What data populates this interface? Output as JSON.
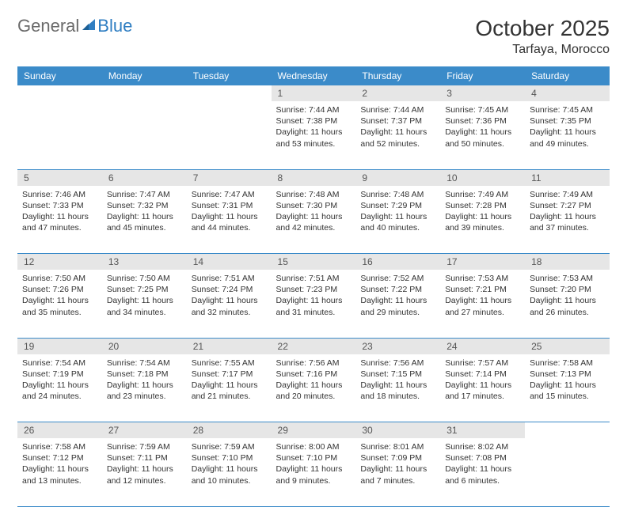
{
  "logo": {
    "part1": "General",
    "part2": "Blue"
  },
  "title": "October 2025",
  "location": "Tarfaya, Morocco",
  "colors": {
    "header_bg": "#3b8bc9",
    "header_text": "#ffffff",
    "daynum_bg": "#e6e6e6",
    "rule": "#3b8bc9",
    "text": "#333333",
    "logo_gray": "#6b6b6b",
    "logo_blue": "#2f7ec2"
  },
  "weekdays": [
    "Sunday",
    "Monday",
    "Tuesday",
    "Wednesday",
    "Thursday",
    "Friday",
    "Saturday"
  ],
  "weeks": [
    {
      "nums": [
        "",
        "",
        "",
        "1",
        "2",
        "3",
        "4"
      ],
      "cells": [
        null,
        null,
        null,
        {
          "sunrise": "Sunrise: 7:44 AM",
          "sunset": "Sunset: 7:38 PM",
          "day1": "Daylight: 11 hours",
          "day2": "and 53 minutes."
        },
        {
          "sunrise": "Sunrise: 7:44 AM",
          "sunset": "Sunset: 7:37 PM",
          "day1": "Daylight: 11 hours",
          "day2": "and 52 minutes."
        },
        {
          "sunrise": "Sunrise: 7:45 AM",
          "sunset": "Sunset: 7:36 PM",
          "day1": "Daylight: 11 hours",
          "day2": "and 50 minutes."
        },
        {
          "sunrise": "Sunrise: 7:45 AM",
          "sunset": "Sunset: 7:35 PM",
          "day1": "Daylight: 11 hours",
          "day2": "and 49 minutes."
        }
      ]
    },
    {
      "nums": [
        "5",
        "6",
        "7",
        "8",
        "9",
        "10",
        "11"
      ],
      "cells": [
        {
          "sunrise": "Sunrise: 7:46 AM",
          "sunset": "Sunset: 7:33 PM",
          "day1": "Daylight: 11 hours",
          "day2": "and 47 minutes."
        },
        {
          "sunrise": "Sunrise: 7:47 AM",
          "sunset": "Sunset: 7:32 PM",
          "day1": "Daylight: 11 hours",
          "day2": "and 45 minutes."
        },
        {
          "sunrise": "Sunrise: 7:47 AM",
          "sunset": "Sunset: 7:31 PM",
          "day1": "Daylight: 11 hours",
          "day2": "and 44 minutes."
        },
        {
          "sunrise": "Sunrise: 7:48 AM",
          "sunset": "Sunset: 7:30 PM",
          "day1": "Daylight: 11 hours",
          "day2": "and 42 minutes."
        },
        {
          "sunrise": "Sunrise: 7:48 AM",
          "sunset": "Sunset: 7:29 PM",
          "day1": "Daylight: 11 hours",
          "day2": "and 40 minutes."
        },
        {
          "sunrise": "Sunrise: 7:49 AM",
          "sunset": "Sunset: 7:28 PM",
          "day1": "Daylight: 11 hours",
          "day2": "and 39 minutes."
        },
        {
          "sunrise": "Sunrise: 7:49 AM",
          "sunset": "Sunset: 7:27 PM",
          "day1": "Daylight: 11 hours",
          "day2": "and 37 minutes."
        }
      ]
    },
    {
      "nums": [
        "12",
        "13",
        "14",
        "15",
        "16",
        "17",
        "18"
      ],
      "cells": [
        {
          "sunrise": "Sunrise: 7:50 AM",
          "sunset": "Sunset: 7:26 PM",
          "day1": "Daylight: 11 hours",
          "day2": "and 35 minutes."
        },
        {
          "sunrise": "Sunrise: 7:50 AM",
          "sunset": "Sunset: 7:25 PM",
          "day1": "Daylight: 11 hours",
          "day2": "and 34 minutes."
        },
        {
          "sunrise": "Sunrise: 7:51 AM",
          "sunset": "Sunset: 7:24 PM",
          "day1": "Daylight: 11 hours",
          "day2": "and 32 minutes."
        },
        {
          "sunrise": "Sunrise: 7:51 AM",
          "sunset": "Sunset: 7:23 PM",
          "day1": "Daylight: 11 hours",
          "day2": "and 31 minutes."
        },
        {
          "sunrise": "Sunrise: 7:52 AM",
          "sunset": "Sunset: 7:22 PM",
          "day1": "Daylight: 11 hours",
          "day2": "and 29 minutes."
        },
        {
          "sunrise": "Sunrise: 7:53 AM",
          "sunset": "Sunset: 7:21 PM",
          "day1": "Daylight: 11 hours",
          "day2": "and 27 minutes."
        },
        {
          "sunrise": "Sunrise: 7:53 AM",
          "sunset": "Sunset: 7:20 PM",
          "day1": "Daylight: 11 hours",
          "day2": "and 26 minutes."
        }
      ]
    },
    {
      "nums": [
        "19",
        "20",
        "21",
        "22",
        "23",
        "24",
        "25"
      ],
      "cells": [
        {
          "sunrise": "Sunrise: 7:54 AM",
          "sunset": "Sunset: 7:19 PM",
          "day1": "Daylight: 11 hours",
          "day2": "and 24 minutes."
        },
        {
          "sunrise": "Sunrise: 7:54 AM",
          "sunset": "Sunset: 7:18 PM",
          "day1": "Daylight: 11 hours",
          "day2": "and 23 minutes."
        },
        {
          "sunrise": "Sunrise: 7:55 AM",
          "sunset": "Sunset: 7:17 PM",
          "day1": "Daylight: 11 hours",
          "day2": "and 21 minutes."
        },
        {
          "sunrise": "Sunrise: 7:56 AM",
          "sunset": "Sunset: 7:16 PM",
          "day1": "Daylight: 11 hours",
          "day2": "and 20 minutes."
        },
        {
          "sunrise": "Sunrise: 7:56 AM",
          "sunset": "Sunset: 7:15 PM",
          "day1": "Daylight: 11 hours",
          "day2": "and 18 minutes."
        },
        {
          "sunrise": "Sunrise: 7:57 AM",
          "sunset": "Sunset: 7:14 PM",
          "day1": "Daylight: 11 hours",
          "day2": "and 17 minutes."
        },
        {
          "sunrise": "Sunrise: 7:58 AM",
          "sunset": "Sunset: 7:13 PM",
          "day1": "Daylight: 11 hours",
          "day2": "and 15 minutes."
        }
      ]
    },
    {
      "nums": [
        "26",
        "27",
        "28",
        "29",
        "30",
        "31",
        ""
      ],
      "cells": [
        {
          "sunrise": "Sunrise: 7:58 AM",
          "sunset": "Sunset: 7:12 PM",
          "day1": "Daylight: 11 hours",
          "day2": "and 13 minutes."
        },
        {
          "sunrise": "Sunrise: 7:59 AM",
          "sunset": "Sunset: 7:11 PM",
          "day1": "Daylight: 11 hours",
          "day2": "and 12 minutes."
        },
        {
          "sunrise": "Sunrise: 7:59 AM",
          "sunset": "Sunset: 7:10 PM",
          "day1": "Daylight: 11 hours",
          "day2": "and 10 minutes."
        },
        {
          "sunrise": "Sunrise: 8:00 AM",
          "sunset": "Sunset: 7:10 PM",
          "day1": "Daylight: 11 hours",
          "day2": "and 9 minutes."
        },
        {
          "sunrise": "Sunrise: 8:01 AM",
          "sunset": "Sunset: 7:09 PM",
          "day1": "Daylight: 11 hours",
          "day2": "and 7 minutes."
        },
        {
          "sunrise": "Sunrise: 8:02 AM",
          "sunset": "Sunset: 7:08 PM",
          "day1": "Daylight: 11 hours",
          "day2": "and 6 minutes."
        },
        null
      ]
    }
  ]
}
